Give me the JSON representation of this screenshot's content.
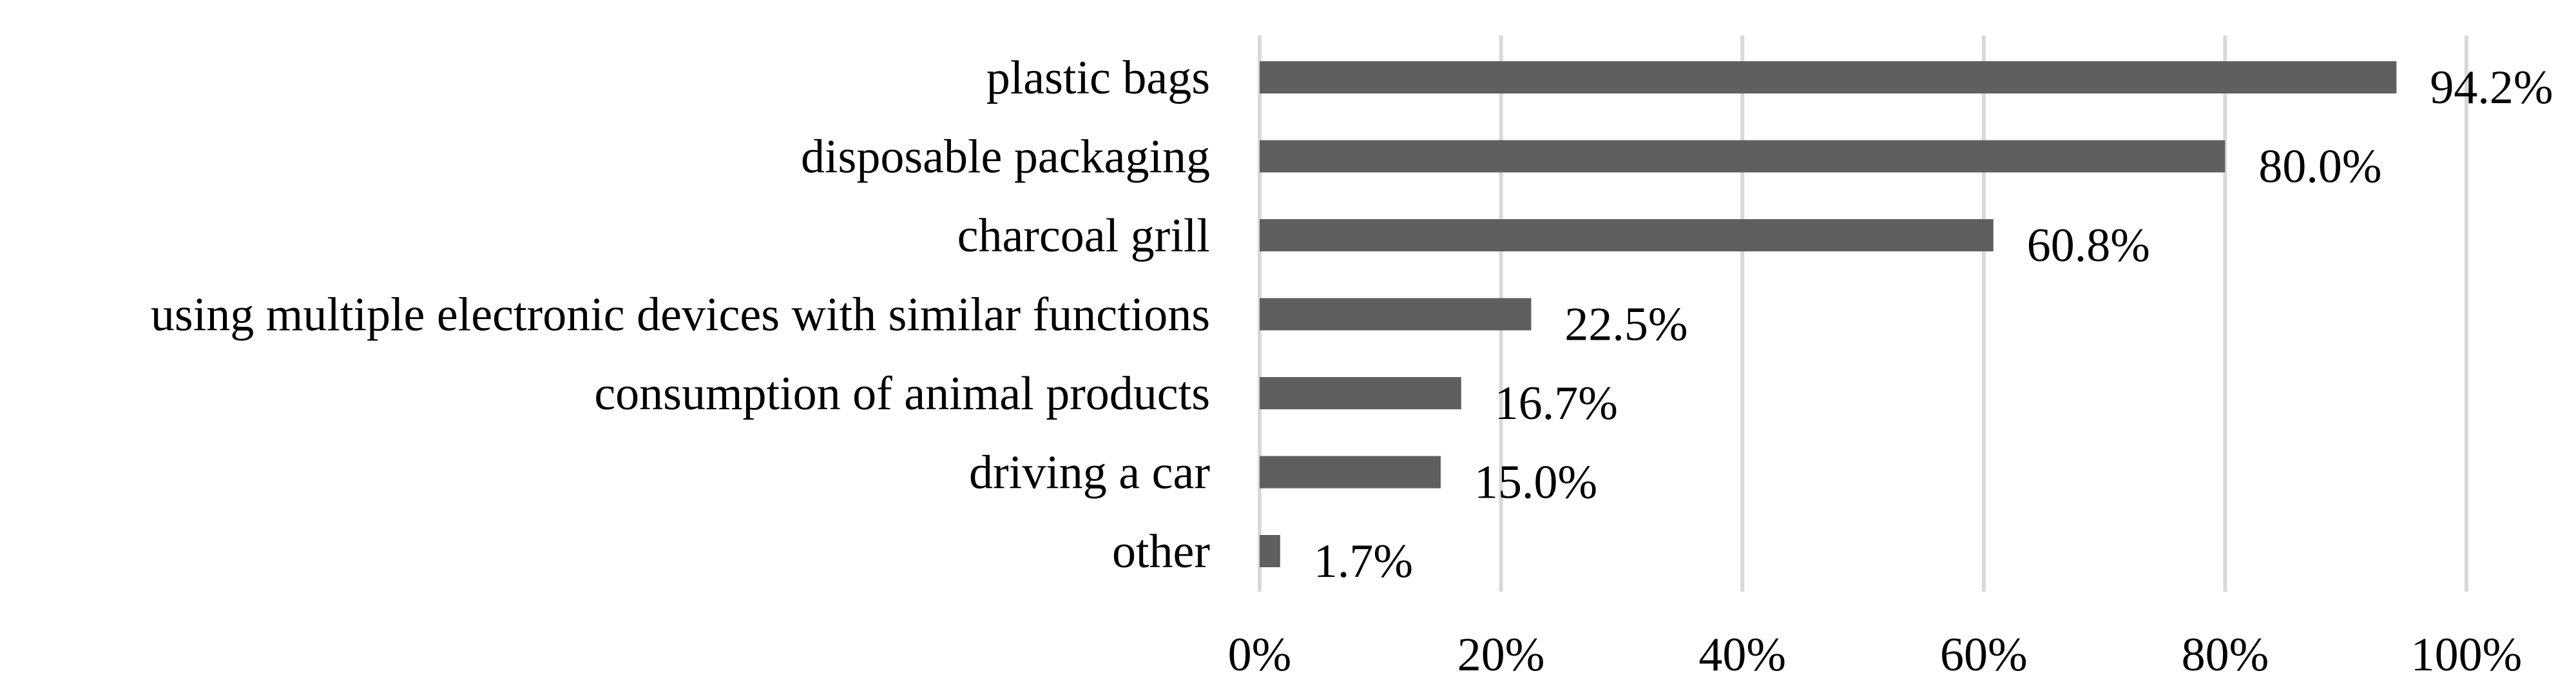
{
  "chart_data": {
    "type": "bar",
    "orientation": "horizontal",
    "categories": [
      "plastic bags",
      "disposable packaging",
      "charcoal grill",
      "using multiple electronic devices with similar functions",
      "consumption of animal products",
      "driving a car",
      "other"
    ],
    "values": [
      94.2,
      80.0,
      60.8,
      22.5,
      16.7,
      15.0,
      1.7
    ],
    "value_labels": [
      "94.2%",
      "80.0%",
      "60.8%",
      "22.5%",
      "16.7%",
      "15.0%",
      "1.7%"
    ],
    "x_ticks": [
      "0%",
      "20%",
      "40%",
      "60%",
      "80%",
      "100%"
    ],
    "xlim": [
      0,
      100
    ],
    "grid": "vertical",
    "legend": "none",
    "bar_color": "#5f5f5f",
    "grid_color": "#d9d9d9",
    "text_color": "#000000"
  }
}
